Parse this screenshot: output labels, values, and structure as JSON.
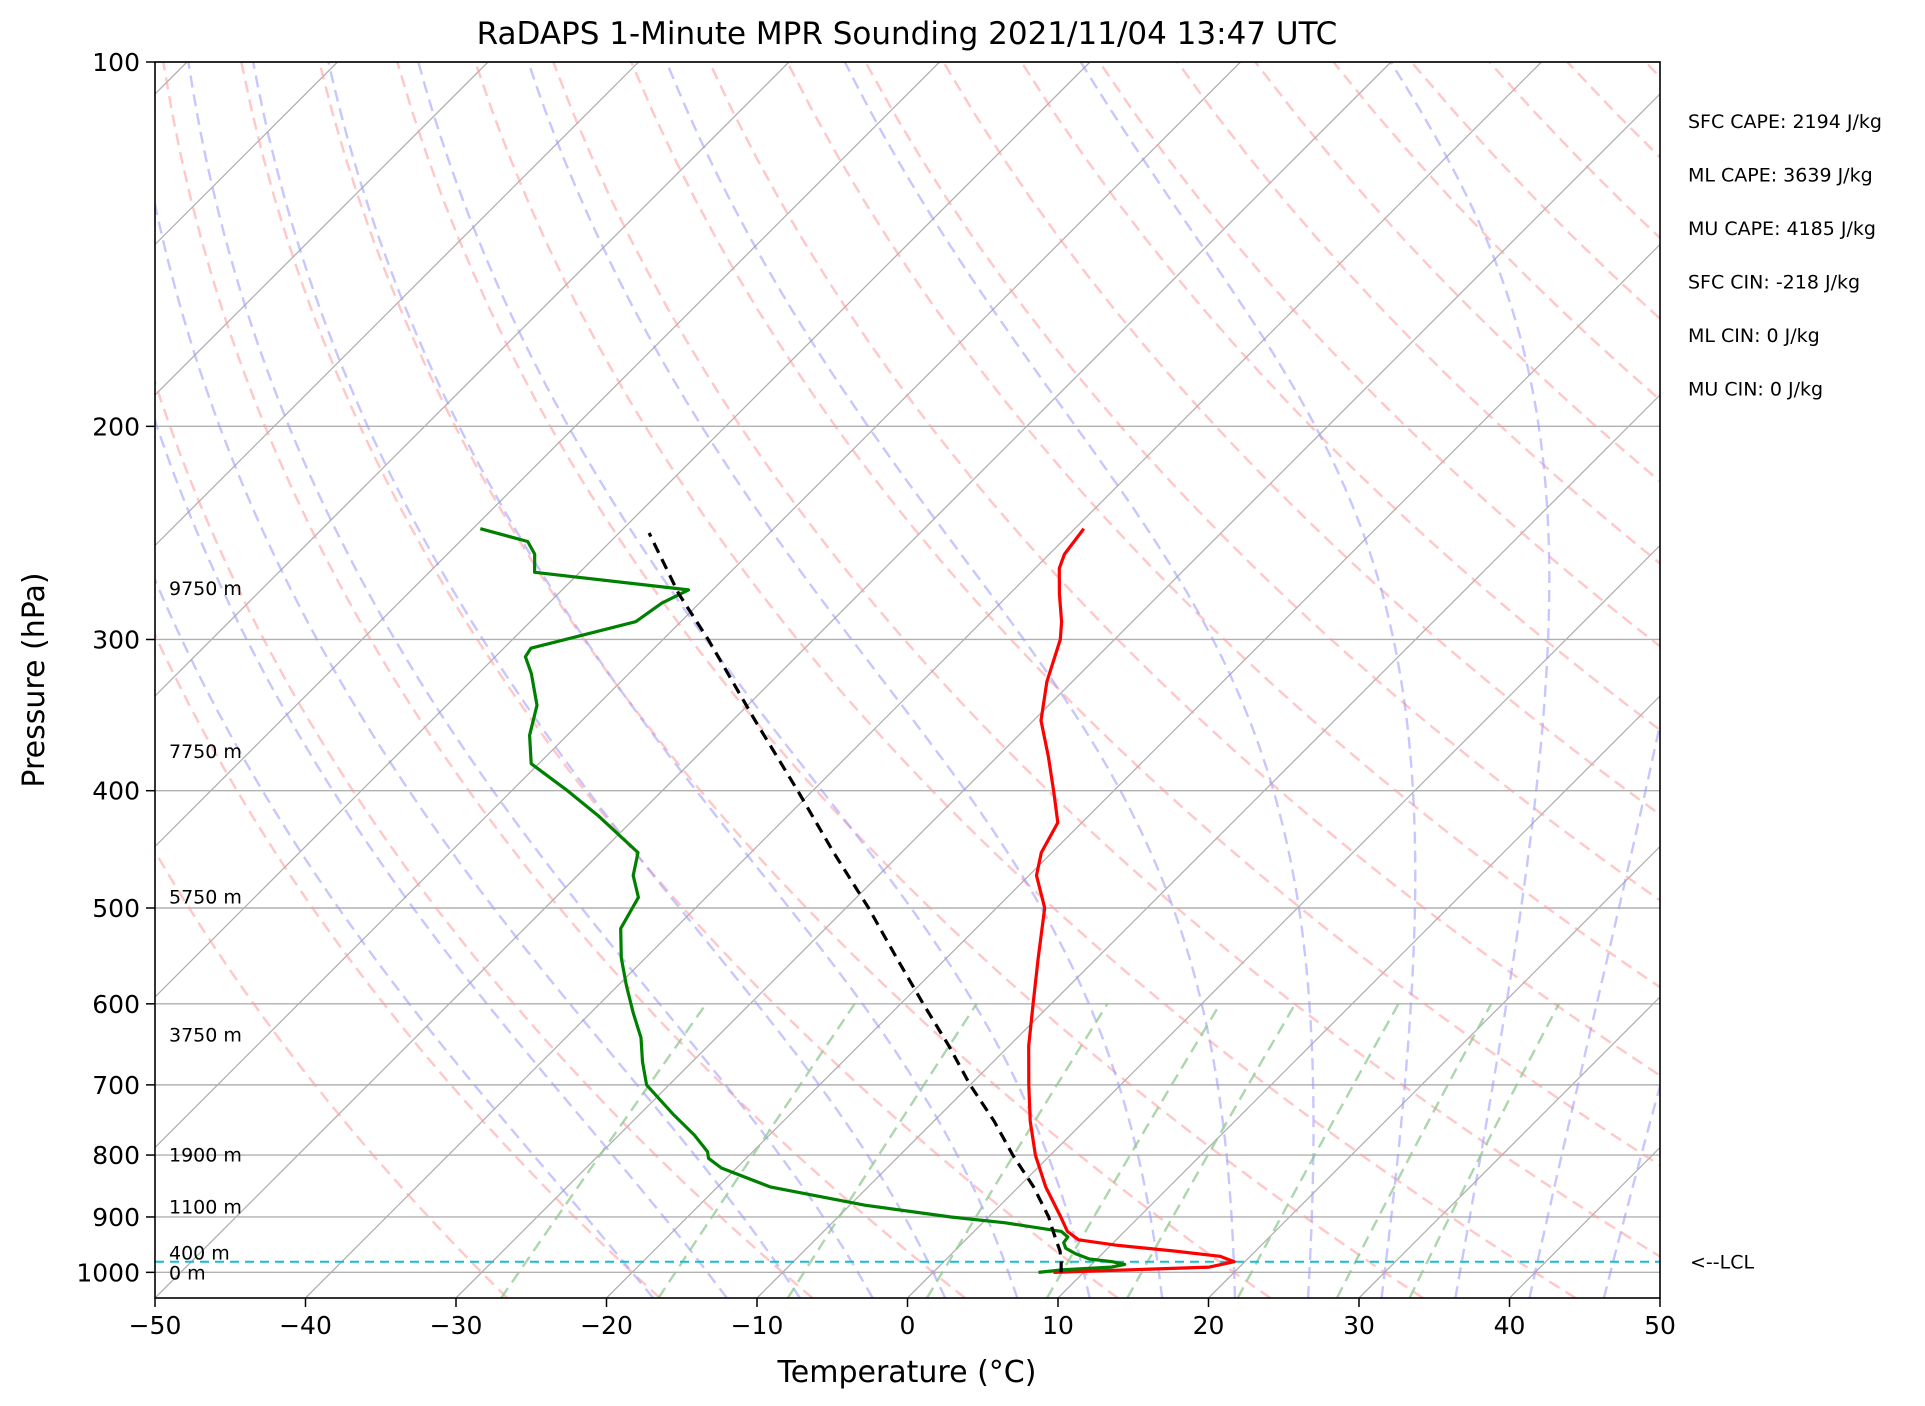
{
  "chart_data": {
    "type": "line",
    "title": "RaDAPS 1-Minute MPR Sounding 2021/11/04 13:47 UTC",
    "xlabel": "Temperature (°C)",
    "ylabel": "Pressure (hPa)",
    "xlim": [
      -50,
      50
    ],
    "ylim": [
      1050,
      100
    ],
    "log_y": true,
    "grid": true,
    "x_ticks": [
      -50,
      -40,
      -30,
      -20,
      -10,
      0,
      10,
      20,
      30,
      40,
      50
    ],
    "x_tick_labels": [
      "−50",
      "−40",
      "−30",
      "−20",
      "−10",
      "0",
      "10",
      "20",
      "30",
      "40",
      "50"
    ],
    "y_ticks": [
      100,
      200,
      300,
      400,
      500,
      600,
      700,
      800,
      900,
      1000
    ],
    "y_tick_labels": [
      "100",
      "200",
      "300",
      "400",
      "500",
      "600",
      "700",
      "800",
      "900",
      "1000"
    ],
    "series": [
      {
        "role": "temperature",
        "color": "#ff0000",
        "points": [
          [
            1000,
            8.0
          ],
          [
            990,
            18.0
          ],
          [
            980,
            19.3
          ],
          [
            970,
            18.0
          ],
          [
            960,
            14.5
          ],
          [
            950,
            10.5
          ],
          [
            940,
            7.5
          ],
          [
            925,
            6.2
          ],
          [
            900,
            4.8
          ],
          [
            850,
            1.8
          ],
          [
            800,
            -1.0
          ],
          [
            750,
            -3.6
          ],
          [
            700,
            -6.1
          ],
          [
            650,
            -8.7
          ],
          [
            600,
            -11.2
          ],
          [
            550,
            -13.9
          ],
          [
            500,
            -16.8
          ],
          [
            470,
            -19.5
          ],
          [
            450,
            -20.7
          ],
          [
            425,
            -21.6
          ],
          [
            400,
            -24.0
          ],
          [
            375,
            -26.6
          ],
          [
            350,
            -29.5
          ],
          [
            325,
            -31.7
          ],
          [
            300,
            -33.6
          ],
          [
            290,
            -34.7
          ],
          [
            275,
            -36.7
          ],
          [
            262,
            -38.4
          ],
          [
            255,
            -39.0
          ],
          [
            243,
            -39.4
          ]
        ]
      },
      {
        "role": "dewpoint",
        "color": "#008000",
        "points": [
          [
            1000,
            7.0
          ],
          [
            995,
            8.5
          ],
          [
            990,
            11.5
          ],
          [
            985,
            12.2
          ],
          [
            980,
            11.2
          ],
          [
            975,
            9.5
          ],
          [
            965,
            8.2
          ],
          [
            955,
            7.2
          ],
          [
            945,
            6.7
          ],
          [
            935,
            6.6
          ],
          [
            925,
            5.8
          ],
          [
            910,
            1.5
          ],
          [
            900,
            -2.5
          ],
          [
            880,
            -9.0
          ],
          [
            850,
            -16.5
          ],
          [
            820,
            -21.0
          ],
          [
            805,
            -22.5
          ],
          [
            795,
            -23.0
          ],
          [
            770,
            -25.0
          ],
          [
            740,
            -27.8
          ],
          [
            700,
            -31.5
          ],
          [
            670,
            -33.3
          ],
          [
            640,
            -35.0
          ],
          [
            610,
            -37.2
          ],
          [
            580,
            -39.4
          ],
          [
            550,
            -41.6
          ],
          [
            520,
            -43.6
          ],
          [
            490,
            -44.5
          ],
          [
            470,
            -46.3
          ],
          [
            450,
            -47.5
          ],
          [
            420,
            -52.5
          ],
          [
            400,
            -56.3
          ],
          [
            380,
            -60.5
          ],
          [
            360,
            -62.5
          ],
          [
            340,
            -64.0
          ],
          [
            320,
            -66.5
          ],
          [
            310,
            -68.0
          ],
          [
            305,
            -68.2
          ],
          [
            290,
            -63.0
          ],
          [
            280,
            -62.5
          ],
          [
            273,
            -61.6
          ],
          [
            264,
            -73.0
          ],
          [
            255,
            -74.2
          ],
          [
            249,
            -75.5
          ],
          [
            243,
            -79.5
          ]
        ]
      },
      {
        "role": "parcel-profile",
        "color": "#000000",
        "points": [
          [
            1000,
            8.5
          ],
          [
            980,
            7.8
          ],
          [
            960,
            7.0
          ],
          [
            940,
            6.0
          ],
          [
            920,
            5.0
          ],
          [
            900,
            4.0
          ],
          [
            850,
            1.0
          ],
          [
            800,
            -2.5
          ],
          [
            750,
            -6.0
          ],
          [
            700,
            -10.0
          ],
          [
            650,
            -14.0
          ],
          [
            600,
            -18.5
          ],
          [
            550,
            -23.3
          ],
          [
            500,
            -28.5
          ],
          [
            450,
            -34.5
          ],
          [
            400,
            -41.0
          ],
          [
            350,
            -48.5
          ],
          [
            300,
            -57.0
          ],
          [
            275,
            -62.0
          ],
          [
            245,
            -68.0
          ]
        ]
      }
    ],
    "lcl": {
      "pressure": 980,
      "label": "<--LCL",
      "color": "#17becf"
    },
    "height_labels": [
      {
        "label": "9750 m",
        "pressure": 272
      },
      {
        "label": "7750 m",
        "pressure": 371
      },
      {
        "label": "5750 m",
        "pressure": 489
      },
      {
        "label": "3750 m",
        "pressure": 636
      },
      {
        "label": "1900 m",
        "pressure": 799
      },
      {
        "label": "1100 m",
        "pressure": 882
      },
      {
        "label": "400 m",
        "pressure": 963
      },
      {
        "label": "0 m",
        "pressure": 1000
      }
    ],
    "stats": [
      "SFC CAPE: 2194 J/kg",
      "ML CAPE: 3639 J/kg",
      "MU CAPE: 4185 J/kg",
      "SFC CIN: -218 J/kg",
      "ML CIN: 0 J/kg",
      "MU CIN: 0 J/kg"
    ],
    "reference_lines": {
      "isotherms": {
        "color": "#b0b0b0"
      },
      "dry_adiabats": {
        "color": "#ff9999",
        "style": "dashed"
      },
      "moist_adiabats": {
        "color": "#9999ff",
        "style": "dashed"
      },
      "mixing_ratio": {
        "color": "#90c890",
        "style": "dashed"
      }
    }
  }
}
